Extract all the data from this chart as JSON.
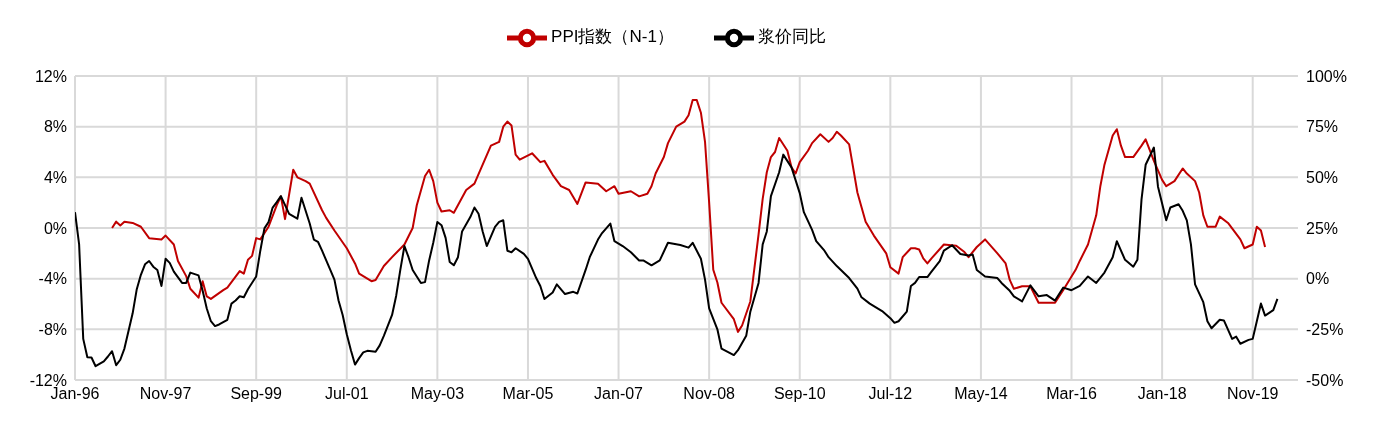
{
  "chart_data": {
    "type": "line",
    "xlim": [
      "1996-01",
      "2020-10"
    ],
    "xticks": [
      {
        "value": "1996-01",
        "label": "Jan-96"
      },
      {
        "value": "1997-11",
        "label": "Nov-97"
      },
      {
        "value": "1999-09",
        "label": "Sep-99"
      },
      {
        "value": "2001-07",
        "label": "Jul-01"
      },
      {
        "value": "2003-05",
        "label": "May-03"
      },
      {
        "value": "2005-03",
        "label": "Mar-05"
      },
      {
        "value": "2007-01",
        "label": "Jan-07"
      },
      {
        "value": "2008-11",
        "label": "Nov-08"
      },
      {
        "value": "2010-09",
        "label": "Sep-10"
      },
      {
        "value": "2012-07",
        "label": "Jul-12"
      },
      {
        "value": "2014-05",
        "label": "May-14"
      },
      {
        "value": "2016-03",
        "label": "Mar-16"
      },
      {
        "value": "2018-01",
        "label": "Jan-18"
      },
      {
        "value": "2019-11",
        "label": "Nov-19"
      }
    ],
    "ylim": [
      -12,
      12
    ],
    "yticks": [
      {
        "value": -12,
        "label": "-12%"
      },
      {
        "value": -8,
        "label": "-8%"
      },
      {
        "value": -4,
        "label": "-4%"
      },
      {
        "value": 0,
        "label": "0%"
      },
      {
        "value": 4,
        "label": "4%"
      },
      {
        "value": 8,
        "label": "8%"
      },
      {
        "value": 12,
        "label": "12%"
      }
    ],
    "y2lim": [
      -50,
      100
    ],
    "y2ticks": [
      {
        "value": -50,
        "label": "-50%"
      },
      {
        "value": -25,
        "label": "-25%"
      },
      {
        "value": 0,
        "label": "0%"
      },
      {
        "value": 25,
        "label": "25%"
      },
      {
        "value": 50,
        "label": "50%"
      },
      {
        "value": 75,
        "label": "75%"
      },
      {
        "value": 100,
        "label": "100%"
      }
    ],
    "grid": true,
    "legend": "top",
    "marker": "none",
    "line_style": "solid",
    "series": [
      {
        "name": "PPI指数（N-1）",
        "color": "#c00000",
        "x": [
          "1996-10",
          "1996-11",
          "1996-12",
          "1997-01",
          "1997-03",
          "1997-05",
          "1997-07",
          "1997-10",
          "1997-11",
          "1998-01",
          "1998-02",
          "1998-04",
          "1998-05",
          "1998-07",
          "1998-08",
          "1998-09",
          "1998-10",
          "1999-01",
          "1999-02",
          "1999-05",
          "1999-06",
          "1999-07",
          "1999-08",
          "1999-09",
          "1999-10",
          "1999-12",
          "2000-02",
          "2000-03",
          "2000-04",
          "2000-06",
          "2000-07",
          "2000-09",
          "2000-10",
          "2001-01",
          "2001-02",
          "2001-04",
          "2001-07",
          "2001-09",
          "2001-10",
          "2002-01",
          "2002-02",
          "2002-04",
          "2002-06",
          "2002-09",
          "2002-11",
          "2002-12",
          "2003-02",
          "2003-03",
          "2003-04",
          "2003-05",
          "2003-06",
          "2003-08",
          "2003-09",
          "2003-12",
          "2004-02",
          "2004-04",
          "2004-06",
          "2004-08",
          "2004-09",
          "2004-10",
          "2004-11",
          "2004-12",
          "2005-01",
          "2005-04",
          "2005-06",
          "2005-07",
          "2005-09",
          "2005-11",
          "2006-01",
          "2006-03",
          "2006-05",
          "2006-08",
          "2006-10",
          "2006-12",
          "2007-01",
          "2007-04",
          "2007-06",
          "2007-08",
          "2007-09",
          "2007-10",
          "2007-12",
          "2008-01",
          "2008-03",
          "2008-05",
          "2008-06",
          "2008-07",
          "2008-08",
          "2008-09",
          "2008-10",
          "2008-11",
          "2008-12",
          "2009-01",
          "2009-02",
          "2009-05",
          "2009-06",
          "2009-07",
          "2009-09",
          "2009-11",
          "2009-12",
          "2010-01",
          "2010-02",
          "2010-03",
          "2010-04",
          "2010-06",
          "2010-07",
          "2010-08",
          "2010-09",
          "2010-11",
          "2010-12",
          "2011-02",
          "2011-04",
          "2011-05",
          "2011-06",
          "2011-07",
          "2011-09",
          "2011-11",
          "2012-01",
          "2012-03",
          "2012-06",
          "2012-07",
          "2012-09",
          "2012-10",
          "2012-12",
          "2013-01",
          "2013-02",
          "2013-03",
          "2013-04",
          "2013-05",
          "2013-08",
          "2013-11",
          "2014-01",
          "2014-02",
          "2014-04",
          "2014-06",
          "2014-09",
          "2014-11",
          "2014-12",
          "2015-01",
          "2015-03",
          "2015-05",
          "2015-07",
          "2015-11",
          "2016-01",
          "2016-04",
          "2016-05",
          "2016-07",
          "2016-09",
          "2016-10",
          "2016-11",
          "2017-01",
          "2017-02",
          "2017-03",
          "2017-04",
          "2017-06",
          "2017-08",
          "2017-09",
          "2017-11",
          "2018-01",
          "2018-02",
          "2018-04",
          "2018-06",
          "2018-07",
          "2018-09",
          "2018-10",
          "2018-11",
          "2018-12",
          "2019-02",
          "2019-03",
          "2019-05",
          "2019-08",
          "2019-09",
          "2019-11",
          "2019-12",
          "2020-01",
          "2020-02"
        ],
        "values": [
          0.0,
          0.5,
          0.2,
          0.5,
          0.4,
          0.1,
          -0.8,
          -0.9,
          -0.6,
          -1.3,
          -2.6,
          -3.8,
          -4.8,
          -5.5,
          -4.2,
          -5.4,
          -5.6,
          -4.9,
          -4.7,
          -3.4,
          -3.6,
          -2.5,
          -2.2,
          -0.8,
          -0.9,
          0.1,
          1.8,
          2.5,
          0.7,
          4.6,
          4.0,
          3.7,
          3.5,
          1.4,
          0.8,
          -0.2,
          -1.6,
          -2.8,
          -3.6,
          -4.2,
          -4.1,
          -3.0,
          -2.3,
          -1.3,
          0.0,
          1.8,
          4.1,
          4.6,
          3.7,
          2.0,
          1.3,
          1.4,
          1.2,
          3.0,
          3.5,
          5.0,
          6.5,
          6.8,
          8.0,
          8.4,
          8.1,
          5.8,
          5.4,
          5.9,
          5.2,
          5.3,
          4.2,
          3.3,
          3.0,
          1.9,
          3.6,
          3.5,
          2.9,
          3.3,
          2.7,
          2.9,
          2.5,
          2.7,
          3.3,
          4.3,
          5.6,
          6.7,
          8.0,
          8.4,
          8.9,
          10.1,
          10.1,
          9.1,
          6.8,
          2.0,
          -3.3,
          -4.3,
          -5.9,
          -7.2,
          -8.2,
          -7.7,
          -5.8,
          -0.5,
          2.3,
          4.4,
          5.6,
          6.0,
          7.1,
          6.1,
          4.8,
          4.3,
          5.2,
          6.1,
          6.7,
          7.4,
          6.8,
          7.1,
          7.6,
          7.3,
          6.6,
          2.8,
          0.5,
          -0.6,
          -2.0,
          -3.1,
          -3.6,
          -2.3,
          -1.6,
          -1.6,
          -1.7,
          -2.4,
          -2.8,
          -2.4,
          -1.3,
          -1.4,
          -1.9,
          -2.3,
          -1.5,
          -0.9,
          -2.0,
          -2.8,
          -4.1,
          -4.8,
          -4.6,
          -4.6,
          -5.9,
          -5.9,
          -4.9,
          -3.3,
          -2.6,
          -1.3,
          1.0,
          3.3,
          5.0,
          7.3,
          7.8,
          6.5,
          5.6,
          5.6,
          6.5,
          7.0,
          5.3,
          3.8,
          3.3,
          3.7,
          4.7,
          4.3,
          3.7,
          2.8,
          1.0,
          0.1,
          0.1,
          0.9,
          0.4,
          -0.9,
          -1.6,
          -1.3,
          0.1,
          -0.2,
          -1.5
        ]
      },
      {
        "name": "浆价同比",
        "color": "#000000",
        "axis": "y2",
        "x": [
          "1996-01",
          "1996-02",
          "1996-03",
          "1996-04",
          "1996-05",
          "1996-06",
          "1996-08",
          "1996-09",
          "1996-10",
          "1996-11",
          "1996-12",
          "1997-01",
          "1997-03",
          "1997-04",
          "1997-05",
          "1997-06",
          "1997-07",
          "1997-08",
          "1997-09",
          "1997-10",
          "1997-11",
          "1997-12",
          "1998-01",
          "1998-03",
          "1998-04",
          "1998-05",
          "1998-07",
          "1998-08",
          "1998-09",
          "1998-10",
          "1998-11",
          "1998-12",
          "1999-02",
          "1999-03",
          "1999-04",
          "1999-05",
          "1999-06",
          "1999-07",
          "1999-09",
          "1999-10",
          "1999-11",
          "1999-12",
          "2000-01",
          "2000-02",
          "2000-03",
          "2000-05",
          "2000-07",
          "2000-08",
          "2000-10",
          "2000-11",
          "2000-12",
          "2001-01",
          "2001-03",
          "2001-04",
          "2001-05",
          "2001-06",
          "2001-07",
          "2001-08",
          "2001-09",
          "2001-10",
          "2001-11",
          "2001-12",
          "2002-02",
          "2002-03",
          "2002-04",
          "2002-06",
          "2002-07",
          "2002-08",
          "2002-09",
          "2002-10",
          "2002-11",
          "2003-01",
          "2003-02",
          "2003-03",
          "2003-04",
          "2003-05",
          "2003-06",
          "2003-07",
          "2003-08",
          "2003-09",
          "2003-10",
          "2003-11",
          "2004-01",
          "2004-02",
          "2004-03",
          "2004-04",
          "2004-05",
          "2004-07",
          "2004-08",
          "2004-09",
          "2004-10",
          "2004-11",
          "2004-12",
          "2005-02",
          "2005-03",
          "2005-05",
          "2005-06",
          "2005-07",
          "2005-09",
          "2005-10",
          "2005-12",
          "2006-02",
          "2006-03",
          "2006-05",
          "2006-06",
          "2006-08",
          "2006-09",
          "2006-11",
          "2006-12",
          "2007-02",
          "2007-04",
          "2007-06",
          "2007-07",
          "2007-09",
          "2007-11",
          "2008-01",
          "2008-04",
          "2008-06",
          "2008-07",
          "2008-09",
          "2008-10",
          "2008-11",
          "2009-01",
          "2009-02",
          "2009-05",
          "2009-06",
          "2009-08",
          "2009-09",
          "2009-11",
          "2009-12",
          "2010-01",
          "2010-02",
          "2010-04",
          "2010-05",
          "2010-07",
          "2010-09",
          "2010-10",
          "2010-12",
          "2011-01",
          "2011-03",
          "2011-04",
          "2011-06",
          "2011-07",
          "2011-09",
          "2011-11",
          "2011-12",
          "2012-02",
          "2012-05",
          "2012-07",
          "2012-08",
          "2012-09",
          "2012-11",
          "2012-12",
          "2013-01",
          "2013-02",
          "2013-04",
          "2013-05",
          "2013-07",
          "2013-08",
          "2013-10",
          "2013-12",
          "2014-02",
          "2014-03",
          "2014-04",
          "2014-06",
          "2014-09",
          "2014-10",
          "2014-12",
          "2015-01",
          "2015-03",
          "2015-05",
          "2015-07",
          "2015-09",
          "2015-11",
          "2016-01",
          "2016-03",
          "2016-05",
          "2016-07",
          "2016-09",
          "2016-11",
          "2017-01",
          "2017-02",
          "2017-04",
          "2017-06",
          "2017-07",
          "2017-08",
          "2017-09",
          "2017-11",
          "2017-12",
          "2018-02",
          "2018-03",
          "2018-05",
          "2018-06",
          "2018-07",
          "2018-08",
          "2018-09",
          "2018-11",
          "2018-12",
          "2019-01",
          "2019-03",
          "2019-04",
          "2019-06",
          "2019-07",
          "2019-08",
          "2019-10",
          "2019-11",
          "2019-12",
          "2020-01",
          "2020-02",
          "2020-04",
          "2020-05"
        ],
        "values": [
          32.8,
          16.9,
          -29.7,
          -38.8,
          -38.9,
          -43.2,
          -40.8,
          -38.4,
          -35.8,
          -42.7,
          -40.0,
          -34.5,
          -17.1,
          -5.2,
          1.9,
          7.1,
          8.7,
          5.9,
          4.3,
          -3.6,
          9.8,
          7.8,
          3.5,
          -2.1,
          -2.1,
          3.0,
          1.6,
          -6.0,
          -14.7,
          -21.0,
          -23.4,
          -22.6,
          -20.3,
          -12.3,
          -10.8,
          -8.7,
          -9.2,
          -5.2,
          1.1,
          13.8,
          24.8,
          28.0,
          35.1,
          37.8,
          40.7,
          32.0,
          29.6,
          39.9,
          27.2,
          19.3,
          18.2,
          13.8,
          4.3,
          -0.5,
          -10.8,
          -17.9,
          -27.4,
          -35.3,
          -42.4,
          -39.2,
          -36.4,
          -35.6,
          -36.1,
          -32.9,
          -28.2,
          -17.9,
          -8.4,
          4.3,
          16.1,
          10.6,
          4.3,
          -2.1,
          -1.7,
          9.0,
          17.7,
          28.0,
          26.4,
          20.1,
          8.2,
          6.6,
          10.6,
          23.3,
          30.4,
          35.1,
          32.0,
          23.3,
          16.1,
          25.6,
          28.0,
          28.8,
          13.8,
          13.0,
          15.0,
          12.2,
          9.8,
          0.3,
          -3.6,
          -10.0,
          -6.8,
          -2.8,
          -7.6,
          -6.5,
          -7.3,
          4.3,
          10.6,
          19.3,
          22.5,
          27.2,
          18.5,
          16.1,
          13.0,
          9.0,
          9.0,
          6.6,
          9.0,
          17.7,
          16.6,
          15.3,
          17.7,
          9.8,
          -0.5,
          -14.7,
          -25.0,
          -34.5,
          -37.7,
          -35.3,
          -28.2,
          -16.3,
          -2.1,
          16.9,
          23.3,
          40.7,
          52.5,
          61.2,
          54.9,
          42.2,
          32.8,
          24.1,
          18.5,
          13.8,
          10.6,
          6.2,
          4.3,
          0.3,
          -4.9,
          -9.2,
          -12.3,
          -16.0,
          -19.5,
          -21.8,
          -21.0,
          -16.3,
          -3.6,
          -2.1,
          0.8,
          0.8,
          3.5,
          8.7,
          13.8,
          16.5,
          12.2,
          11.4,
          11.9,
          4.3,
          1.1,
          0.3,
          -2.1,
          -6.0,
          -8.7,
          -11.2,
          -3.3,
          -8.7,
          -8.1,
          -10.8,
          -4.4,
          -5.7,
          -3.6,
          1.1,
          -2.1,
          3.0,
          10.6,
          18.5,
          9.3,
          5.9,
          9.3,
          39.1,
          56.2,
          64.7,
          45.4,
          28.8,
          35.1,
          36.7,
          33.5,
          28.8,
          16.9,
          -2.8,
          -11.6,
          -21.0,
          -24.5,
          -20.3,
          -20.6,
          -29.7,
          -28.6,
          -32.1,
          -30.2,
          -29.7,
          -21.0,
          -12.3,
          -18.2,
          -15.5,
          -10.0
        ]
      }
    ]
  }
}
